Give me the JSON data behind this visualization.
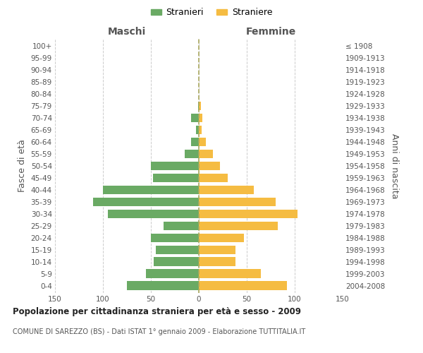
{
  "age_groups": [
    "0-4",
    "5-9",
    "10-14",
    "15-19",
    "20-24",
    "25-29",
    "30-34",
    "35-39",
    "40-44",
    "45-49",
    "50-54",
    "55-59",
    "60-64",
    "65-69",
    "70-74",
    "75-79",
    "80-84",
    "85-89",
    "90-94",
    "95-99",
    "100+"
  ],
  "birth_years": [
    "2004-2008",
    "1999-2003",
    "1994-1998",
    "1989-1993",
    "1984-1988",
    "1979-1983",
    "1974-1978",
    "1969-1973",
    "1964-1968",
    "1959-1963",
    "1954-1958",
    "1949-1953",
    "1944-1948",
    "1939-1943",
    "1934-1938",
    "1929-1933",
    "1924-1928",
    "1919-1923",
    "1914-1918",
    "1909-1913",
    "≤ 1908"
  ],
  "males": [
    75,
    55,
    47,
    45,
    50,
    37,
    95,
    110,
    100,
    48,
    50,
    15,
    8,
    3,
    8,
    1,
    0,
    0,
    0,
    0,
    0
  ],
  "females": [
    92,
    65,
    38,
    38,
    47,
    82,
    103,
    80,
    57,
    30,
    22,
    15,
    7,
    3,
    4,
    2,
    0,
    0,
    0,
    0,
    0
  ],
  "male_color": "#6aaa64",
  "female_color": "#f5bc42",
  "male_label": "Stranieri",
  "female_label": "Straniere",
  "maschi_label": "Maschi",
  "femmine_label": "Femmine",
  "title": "Popolazione per cittadinanza straniera per età e sesso - 2009",
  "subtitle": "COMUNE DI SAREZZO (BS) - Dati ISTAT 1° gennaio 2009 - Elaborazione TUTTITALIA.IT",
  "ylabel_left": "Fasce di età",
  "ylabel_right": "Anni di nascita",
  "xlim": 150,
  "background_color": "#ffffff",
  "grid_color": "#cccccc"
}
